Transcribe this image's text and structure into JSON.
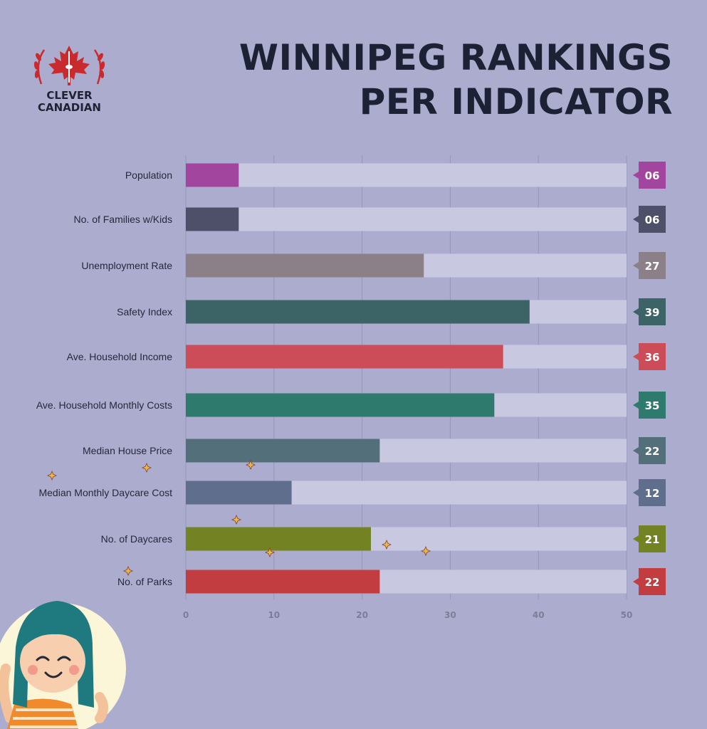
{
  "brand": {
    "line1": "CLEVER",
    "line2": "CANADIAN",
    "icon": "maple-leaf-cn-tower-laurel",
    "color": "#c92a2e"
  },
  "title": {
    "line1": "WINNIPEG RANKINGS",
    "line2": "PER INDICATOR"
  },
  "chart_data": {
    "type": "bar",
    "orientation": "horizontal",
    "xlim": [
      0,
      50
    ],
    "xticks": [
      0,
      10,
      20,
      30,
      40,
      50
    ],
    "grid": true,
    "track_color": "#c8c9e1",
    "categories": [
      "Population",
      "No. of Families w/Kids",
      "Unemployment Rate",
      "Safety Index",
      "Ave. Household Income",
      "Ave. Household Monthly Costs",
      "Median House Price",
      "Median Monthly Daycare Cost",
      "No. of Daycares",
      "No. of Parks"
    ],
    "values": [
      6,
      6,
      27,
      39,
      36,
      35,
      22,
      12,
      21,
      22
    ],
    "value_labels": [
      "06",
      "06",
      "27",
      "39",
      "36",
      "35",
      "22",
      "12",
      "21",
      "22"
    ],
    "colors": [
      "#a2459f",
      "#4e4f68",
      "#8c8088",
      "#3c6366",
      "#cc4d58",
      "#2e7a6c",
      "#536f7a",
      "#5e6e8c",
      "#738324",
      "#c23d3f"
    ]
  },
  "illustration": {
    "icon": "smiling-girl-icon"
  }
}
